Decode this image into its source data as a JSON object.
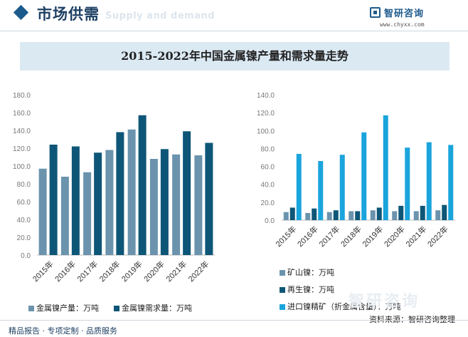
{
  "header": {
    "title": "市场供需",
    "subtitle": "Supply and demand",
    "brand_name": "智研咨询",
    "brand_url": "www.chyxx.com"
  },
  "banner_title": "2015-2022年中国金属镍产量和需求量走势",
  "chart_data": [
    {
      "type": "bar",
      "categories": [
        "2015年",
        "2016年",
        "2017年",
        "2018年",
        "2019年",
        "2020年",
        "2021年",
        "2022年"
      ],
      "ylim": [
        0,
        180
      ],
      "yticks": [
        "0.0",
        "20.0",
        "40.0",
        "60.0",
        "80.0",
        "100.0",
        "120.0",
        "140.0",
        "160.0",
        "180.0"
      ],
      "series": [
        {
          "name": "金属镍产量：万吨",
          "color": "#6b93ad",
          "values": [
            97,
            88,
            93,
            118,
            141,
            108,
            113,
            112
          ]
        },
        {
          "name": "金属镍需求量：万吨",
          "color": "#0e5677",
          "values": [
            124,
            122,
            115,
            138,
            157,
            119,
            139,
            126
          ]
        }
      ]
    },
    {
      "type": "bar",
      "categories": [
        "2015年",
        "2016年",
        "2017年",
        "2018年",
        "2019年",
        "2020年",
        "2021年",
        "2022年"
      ],
      "ylim": [
        0,
        140
      ],
      "yticks": [
        "0.0",
        "20.0",
        "40.0",
        "60.0",
        "80.0",
        "100.0",
        "120.0",
        "140.0"
      ],
      "series": [
        {
          "name": "矿山镍：万吨",
          "color": "#6b93ad",
          "values": [
            9,
            8,
            9,
            10,
            11,
            10,
            10,
            11
          ]
        },
        {
          "name": "再生镍：万吨",
          "color": "#0e5677",
          "values": [
            14,
            13,
            11,
            10,
            14,
            16,
            16,
            17
          ]
        },
        {
          "name": "进口镍精矿（折金属含量）：万吨",
          "color": "#1aa4dc",
          "values": [
            74,
            66,
            73,
            98,
            117,
            81,
            87,
            84
          ]
        }
      ]
    }
  ],
  "source": "资料来源：智研咨询整理",
  "footer": "精品报告 · 专项定制 · 品质服务",
  "watermark": "智研咨询"
}
